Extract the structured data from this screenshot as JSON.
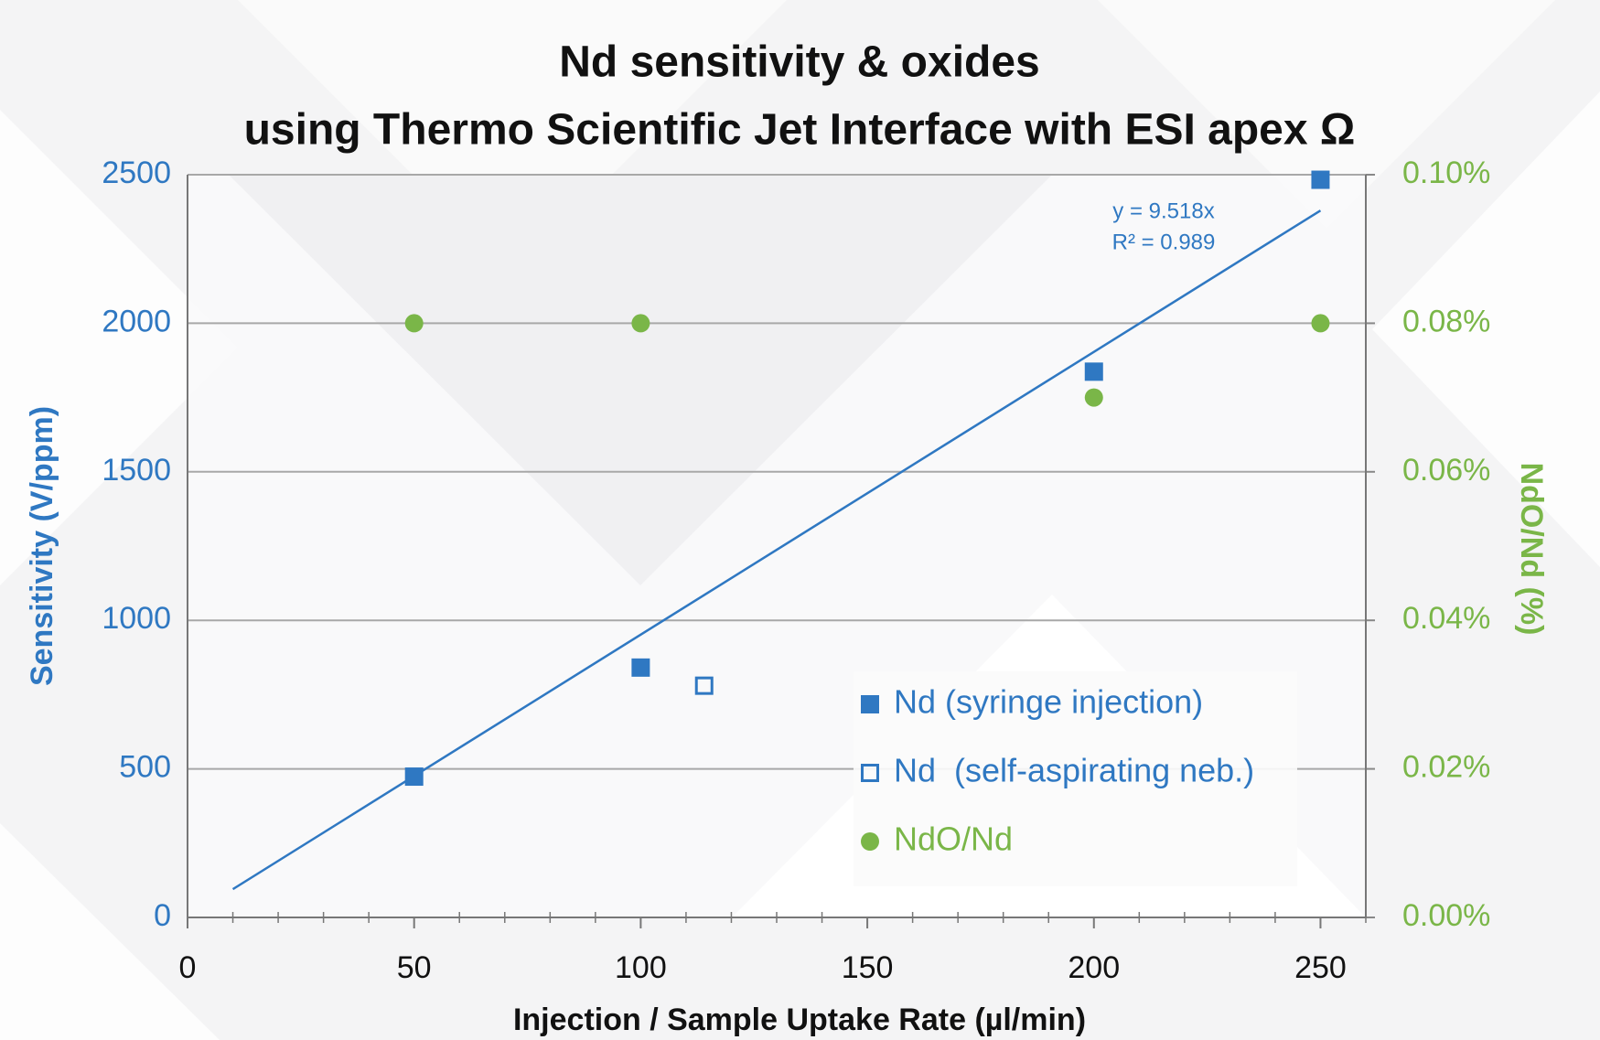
{
  "chart_data": {
    "type": "scatter",
    "title": [
      "Nd sensitivity & oxides",
      "using Thermo Scientific Jet Interface with ESI apex Ω"
    ],
    "xlabel": "Injection / Sample Uptake Rate (µl/min)",
    "ylabel": "Sensitivity (V/ppm)",
    "y2label": "NdO/Nd (%)",
    "xlim": [
      0,
      260
    ],
    "xticks": [
      0,
      50,
      100,
      150,
      200,
      250
    ],
    "xminorticks": [
      10,
      20,
      30,
      40,
      60,
      70,
      80,
      90,
      110,
      120,
      130,
      140,
      160,
      170,
      180,
      190,
      210,
      220,
      230,
      240,
      260
    ],
    "ylim": [
      0,
      2500
    ],
    "yticks": [
      0,
      500,
      1000,
      1500,
      2000,
      2500
    ],
    "y2lim": [
      0,
      0.1
    ],
    "y2ticks": [
      {
        "value": 0,
        "label": "0.00%"
      },
      {
        "value": 0.02,
        "label": "0.02%"
      },
      {
        "value": 0.04,
        "label": "0.04%"
      },
      {
        "value": 0.06,
        "label": "0.06%"
      },
      {
        "value": 0.08,
        "label": "0.08%"
      },
      {
        "value": 0.1,
        "label": "0.10%"
      }
    ],
    "grid": true,
    "legend": "lower-center",
    "series": [
      {
        "name": "Nd (syringe injection)",
        "color": "#2f78c2",
        "marker": "square",
        "x": [
          50,
          100,
          200,
          250
        ],
        "values": [
          474,
          841,
          1837,
          2483
        ]
      },
      {
        "name": "Nd  (self-aspirating neb.)",
        "color": "#2f78c2",
        "marker": "open-square",
        "x": [
          114
        ],
        "values": [
          780
        ]
      },
      {
        "name": "NdO/Nd",
        "color": "#7ab648",
        "marker": "circle",
        "axis": "y2",
        "x": [
          50,
          100,
          200,
          250
        ],
        "values": [
          0.08,
          0.08,
          0.07,
          0.08
        ]
      }
    ],
    "trendline": {
      "color": "#2f78c2",
      "x": [
        10,
        250
      ],
      "values": [
        95.2,
        2379.5
      ]
    },
    "annotations": [
      "y = 9.518x",
      "R² = 0.989"
    ]
  }
}
